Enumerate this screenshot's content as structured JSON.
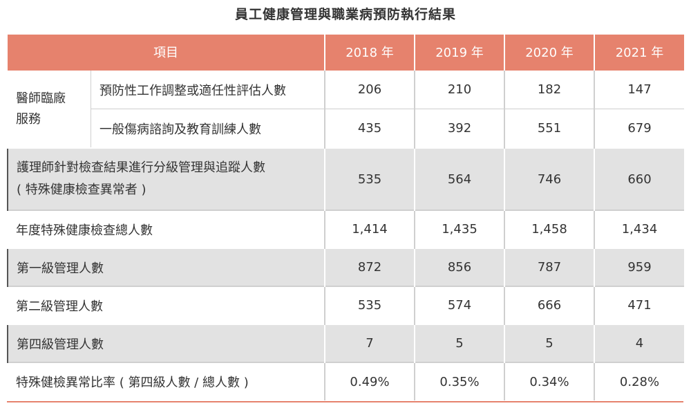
{
  "title": "員工健康管理與職業病預防執行結果",
  "header": {
    "item": "項目",
    "years": [
      "2018 年",
      "2019 年",
      "2020 年",
      "2021 年"
    ]
  },
  "group": {
    "label_line1": "醫師臨廠",
    "label_line2": "服務",
    "rows": [
      {
        "label": "預防性工作調整或適任性評估人數",
        "values": [
          "206",
          "210",
          "182",
          "147"
        ]
      },
      {
        "label": "一般傷病諮詢及教育訓練人數",
        "values": [
          "435",
          "392",
          "551",
          "679"
        ]
      }
    ]
  },
  "rows": [
    {
      "label_line1": "護理師針對檢查結果進行分級管理與追蹤人數",
      "label_line2": "( 特殊健康檢查異常者 )",
      "values": [
        "535",
        "564",
        "746",
        "660"
      ]
    },
    {
      "label_line1": "年度特殊健康檢查總人數",
      "values": [
        "1,414",
        "1,435",
        "1,458",
        "1,434"
      ]
    },
    {
      "label_line1": "第一級管理人數",
      "values": [
        "872",
        "856",
        "787",
        "959"
      ]
    },
    {
      "label_line1": "第二級管理人數",
      "values": [
        "535",
        "574",
        "666",
        "471"
      ]
    },
    {
      "label_line1": "第四級管理人數",
      "values": [
        "7",
        "5",
        "5",
        "4"
      ]
    },
    {
      "label_line1": "特殊健檢異常比率 ( 第四級人數 / 總人數 )",
      "values": [
        "0.49%",
        "0.35%",
        "0.34%",
        "0.28%"
      ]
    }
  ],
  "colors": {
    "header_bg": "#e6826d",
    "stripe_bg": "#e2e2e2"
  }
}
